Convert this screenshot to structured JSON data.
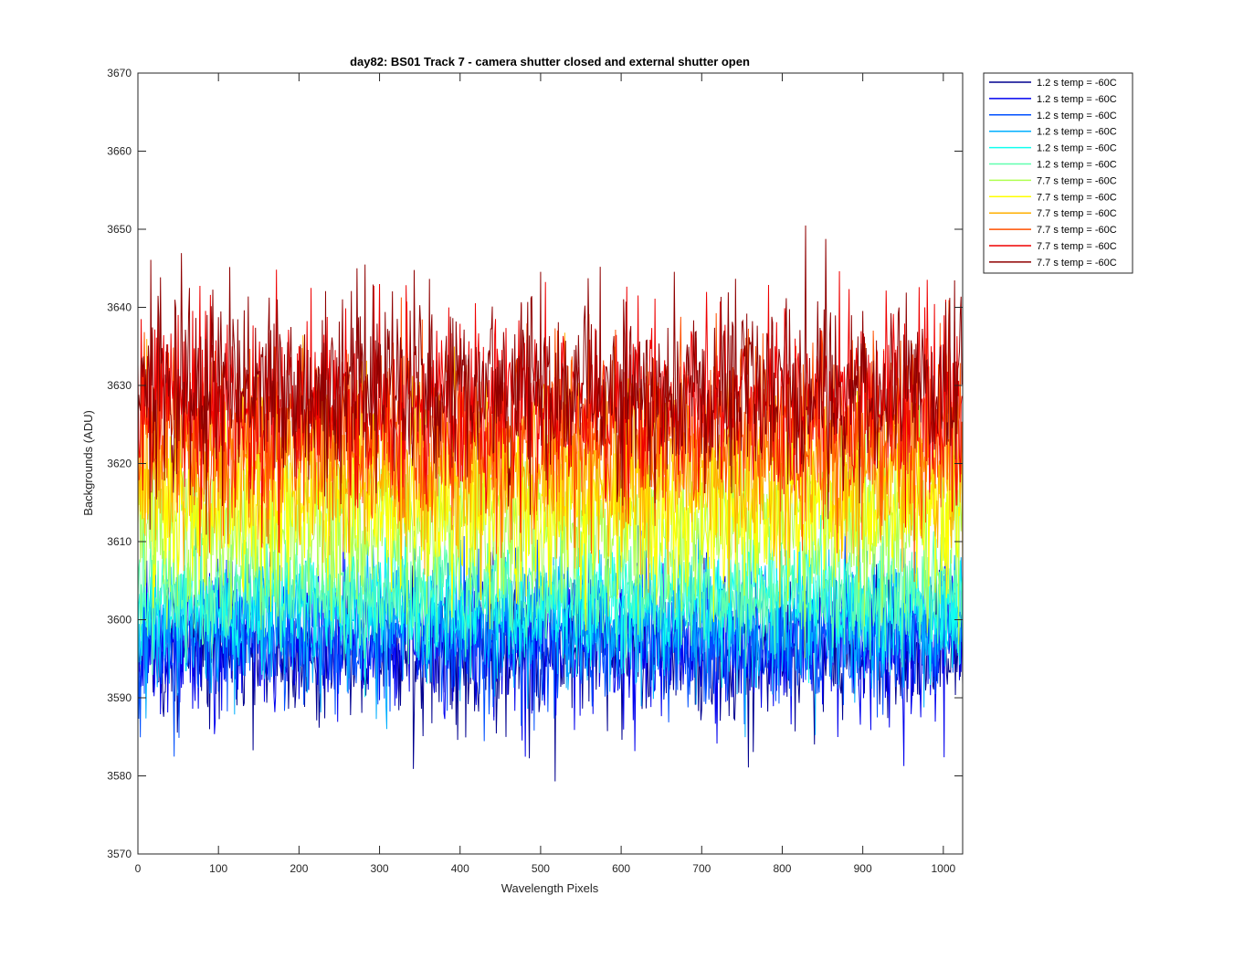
{
  "chart_data": {
    "type": "line",
    "title": "day82: BS01  Track 7 - camera shutter closed and external shutter open",
    "xlabel": "Wavelength Pixels",
    "ylabel": "Backgrounds (ADU)",
    "xlim": [
      0,
      1024
    ],
    "ylim": [
      3570,
      3670
    ],
    "xticks": [
      0,
      100,
      200,
      300,
      400,
      500,
      600,
      700,
      800,
      900,
      1000
    ],
    "yticks": [
      3570,
      3580,
      3590,
      3600,
      3610,
      3620,
      3630,
      3640,
      3650,
      3660,
      3670
    ],
    "xtick_labels": [
      "0",
      "100",
      "200",
      "300",
      "400",
      "500",
      "600",
      "700",
      "800",
      "900",
      "1000"
    ],
    "ytick_labels": [
      "3570",
      "3580",
      "3590",
      "3600",
      "3610",
      "3620",
      "3630",
      "3640",
      "3650",
      "3660",
      "3670"
    ],
    "grid": false,
    "legend_position": "outside-top-right",
    "x_step": 1,
    "series": [
      {
        "name": "1.2 s temp = -60C",
        "color": "#00008F",
        "mean": 3596,
        "spread": 6
      },
      {
        "name": "1.2 s temp = -60C",
        "color": "#0000EF",
        "mean": 3597,
        "spread": 6
      },
      {
        "name": "1.2 s temp = -60C",
        "color": "#0050FF",
        "mean": 3598,
        "spread": 6
      },
      {
        "name": "1.2 s temp = -60C",
        "color": "#00AFFF",
        "mean": 3600,
        "spread": 6
      },
      {
        "name": "1.2 s temp = -60C",
        "color": "#10FFEF",
        "mean": 3602,
        "spread": 5
      },
      {
        "name": "1.2 s temp = -60C",
        "color": "#60FFAF",
        "mean": 3604,
        "spread": 5
      },
      {
        "name": "7.7 s temp = -60C",
        "color": "#AFFF50",
        "mean": 3612,
        "spread": 7
      },
      {
        "name": "7.7 s temp = -60C",
        "color": "#FFFF00",
        "mean": 3615,
        "spread": 7
      },
      {
        "name": "7.7 s temp = -60C",
        "color": "#FFAF00",
        "mean": 3620,
        "spread": 8
      },
      {
        "name": "7.7 s temp = -60C",
        "color": "#FF5000",
        "mean": 3624,
        "spread": 8
      },
      {
        "name": "7.7 s temp = -60C",
        "color": "#EF0000",
        "mean": 3628,
        "spread": 8
      },
      {
        "name": "7.7 s temp = -60C",
        "color": "#8F0000",
        "mean": 3630,
        "spread": 8
      }
    ]
  }
}
